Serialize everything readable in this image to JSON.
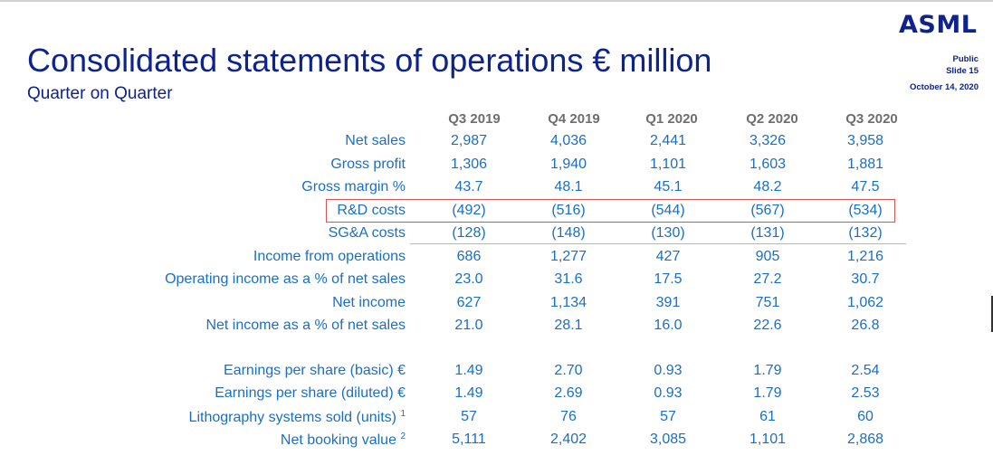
{
  "header": {
    "logo": "ASML",
    "classification": "Public",
    "slide": "Slide 15",
    "date": "October 14, 2020"
  },
  "title": "Consolidated statements of operations € million",
  "subtitle": "Quarter on Quarter",
  "columns": [
    "Q3 2019",
    "Q4 2019",
    "Q1 2020",
    "Q2 2020",
    "Q3 2020"
  ],
  "rows": [
    {
      "label": "Net sales",
      "note": "",
      "values": [
        "2,987",
        "4,036",
        "2,441",
        "3,326",
        "3,958"
      ]
    },
    {
      "label": "Gross profit",
      "note": "",
      "values": [
        "1,306",
        "1,940",
        "1,101",
        "1,603",
        "1,881"
      ]
    },
    {
      "label": "Gross margin %",
      "note": "",
      "values": [
        "43.7",
        "48.1",
        "45.1",
        "48.2",
        "47.5"
      ]
    },
    {
      "label": "R&D costs",
      "note": "",
      "values": [
        "(492)",
        "(516)",
        "(544)",
        "(567)",
        "(534)"
      ]
    },
    {
      "label": "SG&A costs",
      "note": "",
      "values": [
        "(128)",
        "(148)",
        "(130)",
        "(131)",
        "(132)"
      ]
    },
    {
      "label": "Income from operations",
      "note": "",
      "values": [
        "686",
        "1,277",
        "427",
        "905",
        "1,216"
      ]
    },
    {
      "label": "Operating income as a % of net sales",
      "note": "",
      "values": [
        "23.0",
        "31.6",
        "17.5",
        "27.2",
        "30.7"
      ]
    },
    {
      "label": "Net income",
      "note": "",
      "values": [
        "627",
        "1,134",
        "391",
        "751",
        "1,062"
      ]
    },
    {
      "label": "Net income as a % of net sales",
      "note": "",
      "values": [
        "21.0",
        "28.1",
        "16.0",
        "22.6",
        "26.8"
      ]
    },
    {
      "label": "Earnings per share (basic) €",
      "note": "",
      "values": [
        "1.49",
        "2.70",
        "0.93",
        "1.79",
        "2.54"
      ]
    },
    {
      "label": "Earnings per share (diluted) €",
      "note": "",
      "values": [
        "1.49",
        "2.69",
        "0.93",
        "1.79",
        "2.53"
      ]
    },
    {
      "label": "Lithography systems sold (units)",
      "note": "1",
      "values": [
        "57",
        "76",
        "57",
        "61",
        "60"
      ]
    },
    {
      "label": "Net booking value",
      "note": "2",
      "values": [
        "5,111",
        "2,402",
        "3,085",
        "1,101",
        "2,868"
      ]
    }
  ]
}
